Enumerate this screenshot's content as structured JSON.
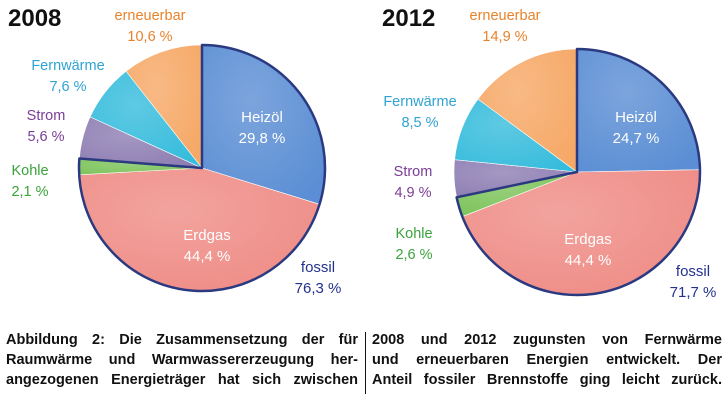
{
  "colors": {
    "heizoel": "#5b8ed4",
    "erdgas": "#ef8c86",
    "kohle": "#7cc35a",
    "strom": "#8e7eb3",
    "fernwaerme": "#36bcdc",
    "erneuerbar": "#f6a866",
    "outline": "#2b3a80",
    "text_white": "#ffffff",
    "label_orange": "#e8822a",
    "label_blue": "#2fa3d0",
    "label_purple": "#7a3d97",
    "label_green": "#3aa33b",
    "label_navy": "#24318c"
  },
  "chart_data": [
    {
      "type": "pie",
      "title": "2008",
      "slices": [
        {
          "key": "heizoel",
          "label": "Heizöl",
          "value": 29.8,
          "display": "29,8 %"
        },
        {
          "key": "erdgas",
          "label": "Erdgas",
          "value": 44.4,
          "display": "44,4 %"
        },
        {
          "key": "kohle",
          "label": "Kohle",
          "value": 2.1,
          "display": "2,1 %"
        },
        {
          "key": "strom",
          "label": "Strom",
          "value": 5.6,
          "display": "5,6 %"
        },
        {
          "key": "fernwaerme",
          "label": "Fernwärme",
          "value": 7.6,
          "display": "7,6 %"
        },
        {
          "key": "erneuerbar",
          "label": "erneuerbar",
          "value": 10.6,
          "display": "10,6 %"
        }
      ],
      "annotation": {
        "label": "fossil",
        "value": 76.3,
        "display": "76,3 %"
      }
    },
    {
      "type": "pie",
      "title": "2012",
      "slices": [
        {
          "key": "heizoel",
          "label": "Heizöl",
          "value": 24.7,
          "display": "24,7 %"
        },
        {
          "key": "erdgas",
          "label": "Erdgas",
          "value": 44.4,
          "display": "44,4 %"
        },
        {
          "key": "kohle",
          "label": "Kohle",
          "value": 2.6,
          "display": "2,6 %"
        },
        {
          "key": "strom",
          "label": "Strom",
          "value": 4.9,
          "display": "4,9 %"
        },
        {
          "key": "fernwaerme",
          "label": "Fernwärme",
          "value": 8.5,
          "display": "8,5 %"
        },
        {
          "key": "erneuerbar",
          "label": "erneuerbar",
          "value": 14.9,
          "display": "14,9 %"
        }
      ],
      "annotation": {
        "label": "fossil",
        "value": 71.7,
        "display": "71,7 %"
      }
    }
  ],
  "caption": {
    "left_lines": [
      "Abbildung 2: Die Zusammensetzung der für",
      "Raumwärme und Warmwassererzeugung her-",
      "angezogenen Energieträger hat sich zwischen"
    ],
    "right_lines": [
      "2008 und 2012 zugunsten von Fernwärme",
      "und erneuerbaren Energien entwickelt. Der",
      "Anteil fossiler Brennstoffe ging leicht zurück."
    ]
  }
}
